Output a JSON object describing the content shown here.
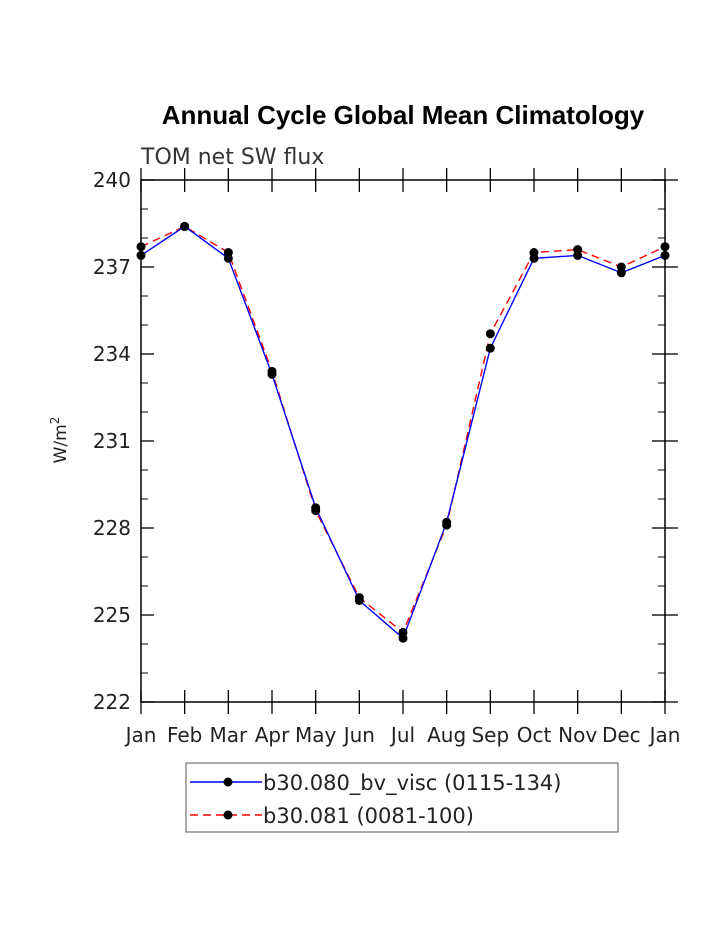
{
  "chart_data": {
    "type": "line",
    "title": "Annual Cycle Global Mean Climatology",
    "subtitle": "TOM net SW flux",
    "ylabel_base": "W/m",
    "ylabel_sup": "2",
    "ylim": [
      222,
      240
    ],
    "yticks": [
      "240",
      "237",
      "234",
      "231",
      "228",
      "225",
      "222"
    ],
    "categories": [
      "Jan",
      "Feb",
      "Mar",
      "Apr",
      "May",
      "Jun",
      "Jul",
      "Aug",
      "Sep",
      "Oct",
      "Nov",
      "Dec",
      "Jan"
    ],
    "series": [
      {
        "name": "b30.080_bv_visc (0115-134)",
        "color": "#0000ff",
        "dash": "solid",
        "values": [
          237.4,
          238.4,
          237.3,
          233.3,
          228.7,
          225.5,
          224.2,
          228.2,
          234.2,
          237.3,
          237.4,
          236.8,
          237.4
        ]
      },
      {
        "name": "b30.081 (0081-100)",
        "color": "#ff0000",
        "dash": "dashed",
        "values": [
          237.7,
          238.4,
          237.5,
          233.4,
          228.6,
          225.6,
          224.4,
          228.1,
          234.7,
          237.5,
          237.6,
          237.0,
          237.7
        ]
      }
    ]
  }
}
